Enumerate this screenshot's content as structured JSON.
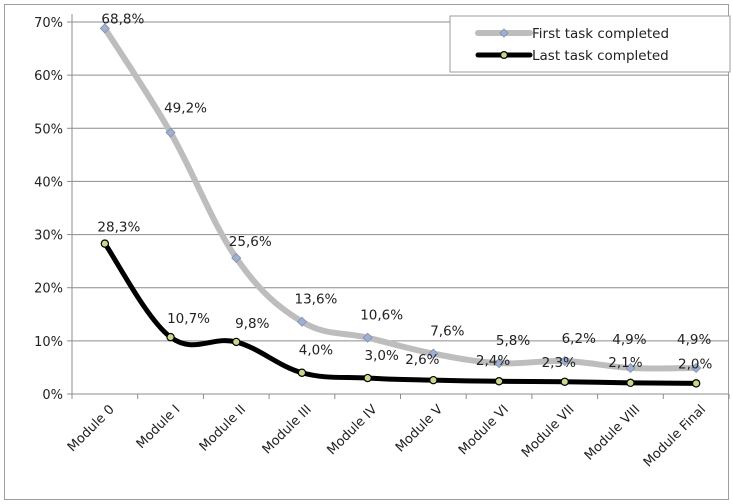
{
  "chart_data": {
    "type": "line",
    "categories": [
      "Module 0",
      "Module I",
      "Module II",
      "Module III",
      "Module IV",
      "Module V",
      "Module VI",
      "Module VII",
      "Module VIII",
      "Module Final"
    ],
    "ylim": [
      0,
      70
    ],
    "yticks": [
      "0%",
      "10%",
      "20%",
      "30%",
      "40%",
      "50%",
      "60%",
      "70%"
    ],
    "grid": true,
    "legend_position": "top-right",
    "series": [
      {
        "name": "First task completed",
        "values": [
          68.8,
          49.2,
          25.6,
          13.6,
          10.6,
          7.6,
          5.8,
          6.2,
          4.9,
          4.9
        ],
        "labels": [
          "68,8%",
          "49,2%",
          "25,6%",
          "13,6%",
          "10,6%",
          "7,6%",
          "5,8%",
          "6,2%",
          "4,9%",
          "4,9%"
        ],
        "color": "#bdbdbd",
        "marker_color": "#9fb0cf"
      },
      {
        "name": "Last task completed",
        "values": [
          28.3,
          10.7,
          9.8,
          4.0,
          3.0,
          2.6,
          2.4,
          2.3,
          2.1,
          2.0
        ],
        "labels": [
          "28,3%",
          "10,7%",
          "9,8%",
          "4,0%",
          "3,0%",
          "2,6%",
          "2,4%",
          "2,3%",
          "2,1%",
          "2,0%"
        ],
        "color": "#000000",
        "marker_color": "#c7d98a"
      }
    ]
  }
}
